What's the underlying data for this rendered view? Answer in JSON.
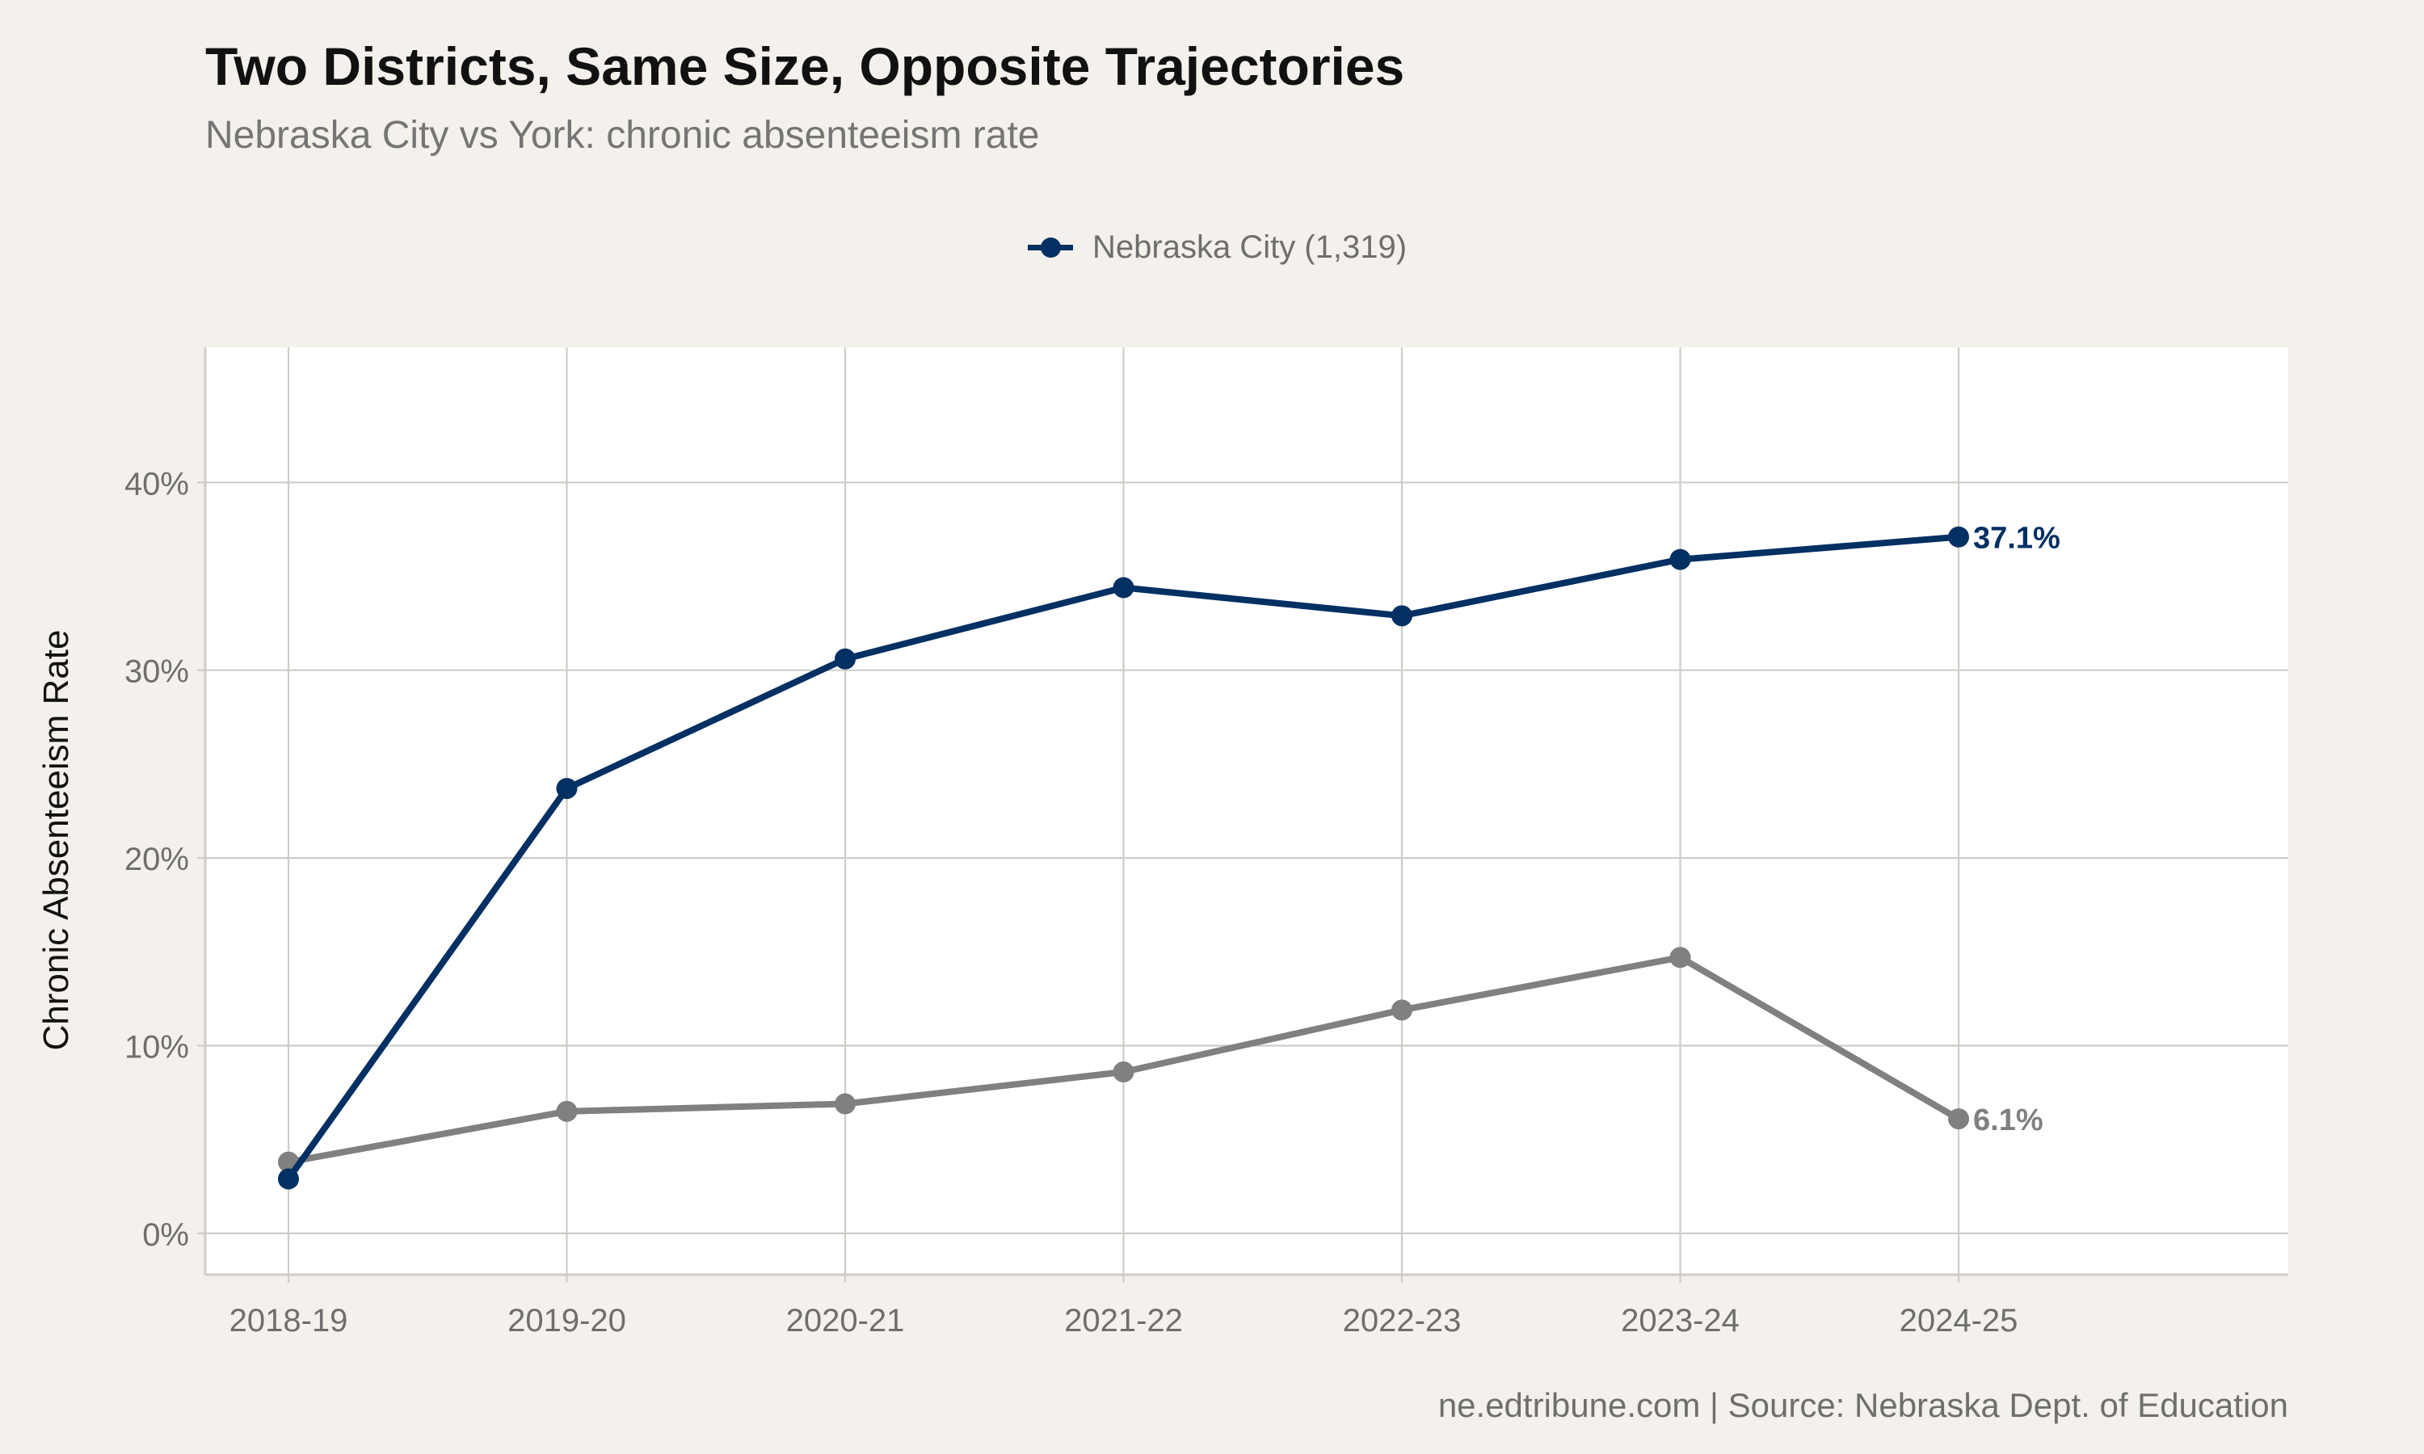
{
  "title": "Two Districts, Same Size, Opposite Trajectories",
  "subtitle": "Nebraska City vs York: chronic absenteeism rate",
  "caption": "ne.edtribune.com | Source: Nebraska Dept. of Education",
  "colors": {
    "background": "#f4f1ec",
    "panel": "#ffffff",
    "grid": "#cfcdc8",
    "series_primary": "#023063",
    "series_secondary": "#808080"
  },
  "chart_data": {
    "type": "line",
    "title": "Two Districts, Same Size, Opposite Trajectories",
    "subtitle": "Nebraska City vs York: chronic absenteeism rate",
    "xlabel": "",
    "ylabel": "Chronic Absenteeism Rate",
    "categories": [
      "2018-19",
      "2019-20",
      "2020-21",
      "2021-22",
      "2022-23",
      "2023-24",
      "2024-25"
    ],
    "y_ticks": [
      0,
      10,
      20,
      30,
      40
    ],
    "y_tick_labels": [
      "0%",
      "10%",
      "20%",
      "30%",
      "40%"
    ],
    "ylim": [
      -2.2,
      47.2
    ],
    "grid": true,
    "legend_position": "top",
    "series": [
      {
        "name": "Nebraska City (1,319)",
        "color": "#023063",
        "in_legend": true,
        "values": [
          2.9,
          23.7,
          30.6,
          34.4,
          32.9,
          35.9,
          37.1
        ],
        "end_label": "37.1%"
      },
      {
        "color": "#808080",
        "in_legend": false,
        "values": [
          3.8,
          6.5,
          6.9,
          8.6,
          11.9,
          14.7,
          6.1
        ],
        "end_label": "6.1%"
      }
    ]
  }
}
